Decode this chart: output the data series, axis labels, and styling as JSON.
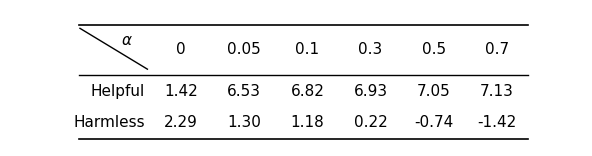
{
  "col_headers": [
    "0",
    "0.05",
    "0.1",
    "0.3",
    "0.5",
    "0.7"
  ],
  "row_headers": [
    "Helpful",
    "Harmless"
  ],
  "values": [
    [
      "1.42",
      "6.53",
      "6.82",
      "6.93",
      "7.05",
      "7.13"
    ],
    [
      "2.29",
      "1.30",
      "1.18",
      "0.22",
      "-0.74",
      "-1.42"
    ]
  ],
  "alpha_label": "α",
  "table_bg": "#ffffff",
  "fontsize": 11,
  "header_fontsize": 11
}
